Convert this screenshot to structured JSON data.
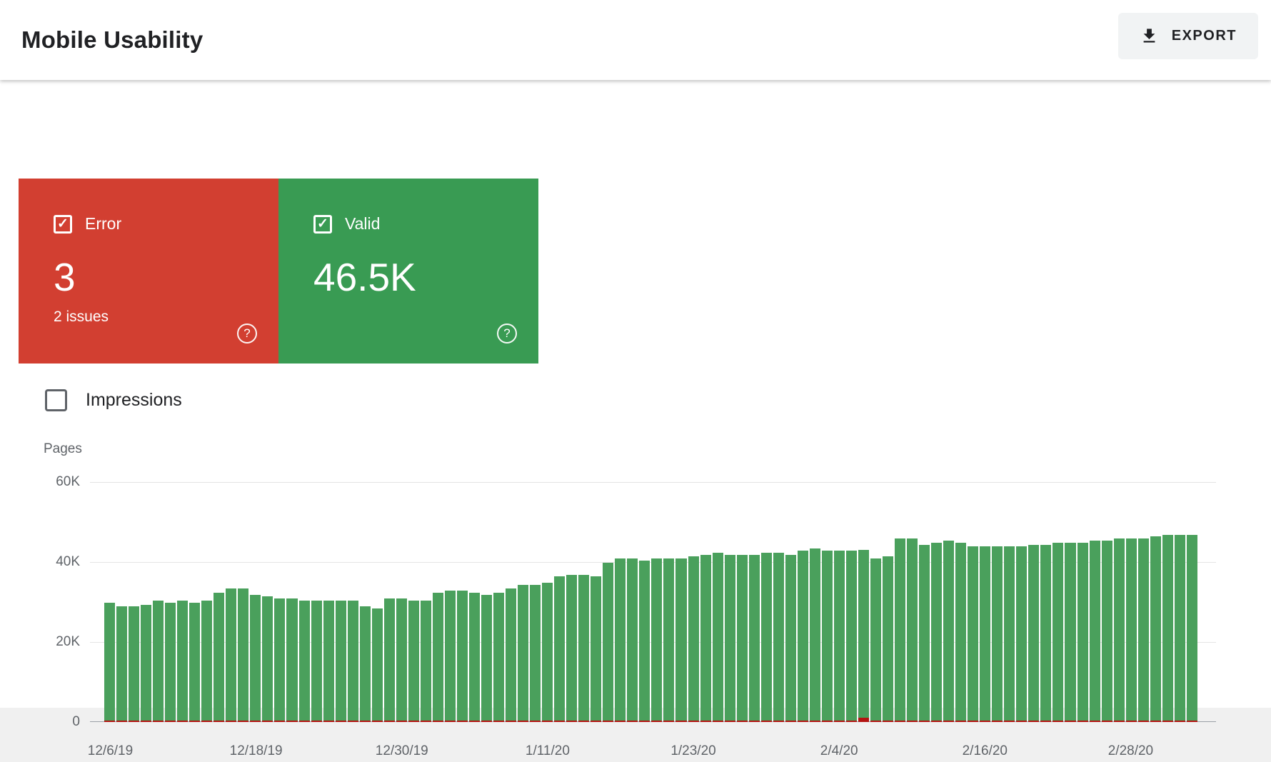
{
  "header": {
    "title": "Mobile Usability",
    "export_button": {
      "label": "EXPORT",
      "icon": "download-icon"
    }
  },
  "cards": {
    "error": {
      "label": "Error",
      "value": "3",
      "sub_label": "2 issues",
      "checked": true,
      "color": "#d23f31"
    },
    "valid": {
      "label": "Valid",
      "value": "46.5K",
      "checked": true,
      "color": "#399b53"
    }
  },
  "filters": {
    "impressions": {
      "label": "Impressions",
      "checked": false
    }
  },
  "chart_data": {
    "type": "bar",
    "stacked": true,
    "title": "",
    "ylabel": "Pages",
    "ylim": [
      0,
      60000
    ],
    "y_ticks": [
      "60K",
      "40K",
      "20K",
      "0"
    ],
    "grid": true,
    "legend": "none",
    "x_tick_labels": [
      "12/6/19",
      "12/18/19",
      "12/30/19",
      "1/11/20",
      "1/23/20",
      "2/4/20",
      "2/16/20",
      "2/28/20"
    ],
    "x_tick_indices": [
      0,
      12,
      24,
      36,
      48,
      60,
      72,
      84
    ],
    "categories": [
      "12/6/19",
      "12/7/19",
      "12/8/19",
      "12/9/19",
      "12/10/19",
      "12/11/19",
      "12/12/19",
      "12/13/19",
      "12/14/19",
      "12/15/19",
      "12/16/19",
      "12/17/19",
      "12/18/19",
      "12/19/19",
      "12/20/19",
      "12/21/19",
      "12/22/19",
      "12/23/19",
      "12/24/19",
      "12/25/19",
      "12/26/19",
      "12/27/19",
      "12/28/19",
      "12/29/19",
      "12/30/19",
      "12/31/19",
      "1/1/20",
      "1/2/20",
      "1/3/20",
      "1/4/20",
      "1/5/20",
      "1/6/20",
      "1/7/20",
      "1/8/20",
      "1/9/20",
      "1/10/20",
      "1/11/20",
      "1/12/20",
      "1/13/20",
      "1/14/20",
      "1/15/20",
      "1/16/20",
      "1/17/20",
      "1/18/20",
      "1/19/20",
      "1/20/20",
      "1/21/20",
      "1/22/20",
      "1/23/20",
      "1/24/20",
      "1/25/20",
      "1/26/20",
      "1/27/20",
      "1/28/20",
      "1/29/20",
      "1/30/20",
      "1/31/20",
      "2/1/20",
      "2/2/20",
      "2/3/20",
      "2/4/20",
      "2/5/20",
      "2/6/20",
      "2/7/20",
      "2/8/20",
      "2/9/20",
      "2/10/20",
      "2/11/20",
      "2/12/20",
      "2/13/20",
      "2/14/20",
      "2/15/20",
      "2/16/20",
      "2/17/20",
      "2/18/20",
      "2/19/20",
      "2/20/20",
      "2/21/20",
      "2/22/20",
      "2/23/20",
      "2/24/20",
      "2/25/20",
      "2/26/20",
      "2/27/20",
      "2/28/20",
      "2/29/20",
      "3/1/20",
      "3/2/20",
      "3/3/20",
      "3/4/20"
    ],
    "series": [
      {
        "name": "Valid",
        "color": "#4aa05c",
        "values": [
          29500,
          28500,
          28500,
          29000,
          30000,
          29500,
          30000,
          29500,
          30000,
          32000,
          33000,
          33000,
          31500,
          31000,
          30500,
          30500,
          30000,
          30000,
          30000,
          30000,
          30000,
          28500,
          28000,
          30500,
          30500,
          30000,
          30000,
          32000,
          32500,
          32500,
          32000,
          31500,
          32000,
          33000,
          34000,
          34000,
          34500,
          36000,
          36500,
          36500,
          36000,
          39500,
          40500,
          40500,
          40000,
          40500,
          40500,
          40500,
          41000,
          41500,
          42000,
          41500,
          41500,
          41500,
          42000,
          42000,
          41500,
          42500,
          43000,
          42500,
          42500,
          42500,
          42000,
          40500,
          41000,
          45500,
          45500,
          44000,
          44500,
          45000,
          44500,
          43500,
          43500,
          43500,
          43500,
          43500,
          44000,
          44000,
          44500,
          44500,
          44500,
          45000,
          45000,
          45500,
          45500,
          45500,
          46000,
          46500,
          46500,
          46500
        ]
      },
      {
        "name": "Error",
        "color": "#b31412",
        "values": [
          200,
          200,
          200,
          200,
          200,
          200,
          200,
          200,
          200,
          200,
          200,
          200,
          200,
          200,
          200,
          200,
          200,
          200,
          200,
          200,
          200,
          200,
          200,
          200,
          200,
          200,
          200,
          200,
          200,
          200,
          200,
          200,
          200,
          200,
          200,
          200,
          200,
          200,
          200,
          200,
          200,
          200,
          200,
          200,
          200,
          200,
          200,
          200,
          200,
          200,
          200,
          200,
          200,
          200,
          200,
          200,
          200,
          200,
          200,
          200,
          200,
          400,
          1000,
          200,
          200,
          200,
          200,
          200,
          200,
          200,
          200,
          200,
          200,
          200,
          200,
          200,
          200,
          200,
          200,
          200,
          200,
          200,
          200,
          200,
          200,
          200,
          200,
          200,
          200,
          200
        ]
      }
    ]
  },
  "colors": {
    "error_red": "#d23f31",
    "valid_green": "#399b53",
    "bar_green": "#4aa05c",
    "bar_red": "#b31412",
    "axis_text": "#5f6368"
  }
}
